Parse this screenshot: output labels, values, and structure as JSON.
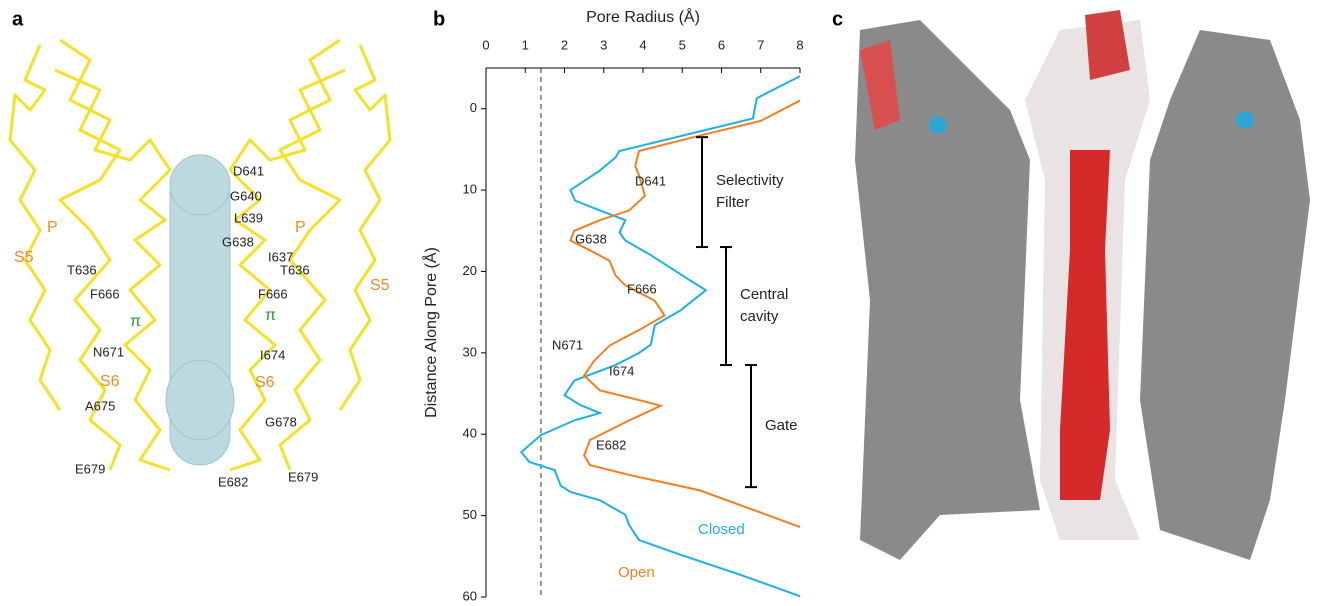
{
  "panel_a": {
    "label": "a",
    "labels": [
      "D641",
      "G640",
      "L639",
      "G638",
      "I637",
      "T636",
      "T636",
      "F666",
      "F666",
      "π",
      "π",
      "N671",
      "I674",
      "S6",
      "S6",
      "A675",
      "G678",
      "E679",
      "E682",
      "E679",
      "P",
      "P",
      "S5",
      "S5"
    ]
  },
  "panel_c": {
    "label": "c"
  },
  "chart_data": {
    "type": "line",
    "label": "b",
    "xlabel": "Pore Radius (Å)",
    "ylabel": "Distance Along Pore (Å)",
    "xlim": [
      0,
      8
    ],
    "xticks": [
      0,
      1,
      2,
      3,
      4,
      5,
      6,
      7,
      8
    ],
    "ylim": [
      -5,
      60
    ],
    "yticks": [
      0,
      10,
      20,
      30,
      40,
      50,
      60
    ],
    "reference_line": 1.4,
    "series": [
      {
        "name": "Closed",
        "color": "#1ab0e8",
        "y": [
          -4,
          -1.3,
          1.2,
          5.2,
          6,
          7.6,
          10,
          11.3,
          12.5,
          13.7,
          15.2,
          16.2,
          18,
          21.1,
          22.3,
          24.8,
          26.6,
          29,
          30,
          31.5,
          33.4,
          35.2,
          36.4,
          37.4,
          38.3,
          40.1,
          42.2,
          43.4,
          44.4,
          46.3,
          47.1,
          48.1,
          49.9,
          51.2,
          53,
          54.8,
          57.3,
          59.9
        ],
        "values": [
          8,
          6.9,
          6.8,
          3.4,
          3.3,
          2.9,
          2.15,
          2.27,
          2.9,
          3.55,
          3.4,
          3.55,
          4.2,
          5.2,
          5.6,
          4.95,
          4.3,
          4.2,
          3.9,
          3.3,
          2.25,
          2.0,
          2.4,
          2.9,
          2.25,
          1.4,
          0.9,
          1.1,
          1.75,
          1.9,
          2.15,
          2.9,
          3.55,
          3.65,
          3.9,
          4.95,
          6.5,
          8
        ]
      },
      {
        "name": "Open",
        "color": "#f47f20",
        "y": [
          -1,
          1.5,
          3.3,
          5.2,
          7,
          8.2,
          10.7,
          12.5,
          13.7,
          15,
          16.2,
          17.4,
          18.7,
          20.5,
          21.7,
          23.6,
          25.4,
          27.2,
          29.1,
          31,
          32.8,
          34.6,
          35.8,
          36.5,
          38.3,
          40.7,
          42.6,
          43.8,
          45,
          46.9,
          51.4
        ],
        "values": [
          8,
          7,
          5.45,
          3.9,
          3.8,
          3.9,
          4.05,
          3.65,
          2.9,
          2.25,
          2.15,
          2.65,
          3.15,
          3.3,
          3.55,
          4.3,
          4.55,
          3.9,
          3.15,
          2.75,
          2.5,
          2.9,
          3.9,
          4.45,
          3.65,
          2.65,
          2.5,
          2.65,
          3.65,
          5.45,
          8
        ]
      }
    ],
    "annotations": [
      "D641",
      "G638",
      "F666",
      "N671",
      "I674",
      "E682"
    ],
    "brackets": [
      {
        "lines": [
          "Selectivity",
          "Filter"
        ],
        "range": [
          3.5,
          17
        ]
      },
      {
        "lines": [
          "Central",
          "cavity"
        ],
        "range": [
          17,
          31.5
        ]
      },
      {
        "lines": [
          "Gate"
        ],
        "range": [
          31.5,
          46.5
        ]
      }
    ]
  }
}
